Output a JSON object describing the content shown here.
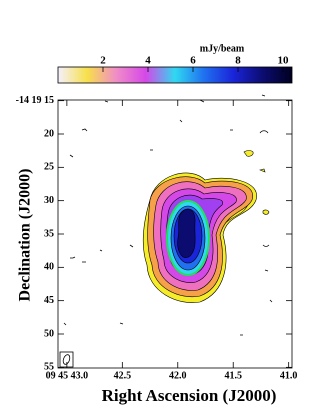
{
  "chart_data": {
    "type": "image",
    "xlabel": "Right Ascension (J2000)",
    "ylabel": "Declination (J2000)",
    "xlim": [
      43.08,
      40.97
    ],
    "xticks": [
      {
        "value": 43.0,
        "label": "09 45 43.0"
      },
      42.5,
      {
        "value": 42.0,
        "label": "42.0"
      },
      41.5,
      {
        "value": 41.0,
        "label": "41.0"
      }
    ],
    "ylim": [
      55.1,
      14.9
    ],
    "yticks": [
      {
        "value": 15,
        "label": "-14 19 15"
      },
      20,
      25,
      30,
      35,
      40,
      45,
      50,
      55
    ],
    "colorbar": {
      "label": "mJy/beam",
      "lim": [
        0,
        10.4
      ],
      "ticks": [
        2,
        4,
        6,
        8,
        10
      ],
      "colors": [
        "#f4f0ff",
        "#f7e04a",
        "#f08cc8",
        "#d548e8",
        "#30d8f0",
        "#2070f0",
        "#1a24d8",
        "#0c0c70",
        "#000020"
      ]
    }
  }
}
